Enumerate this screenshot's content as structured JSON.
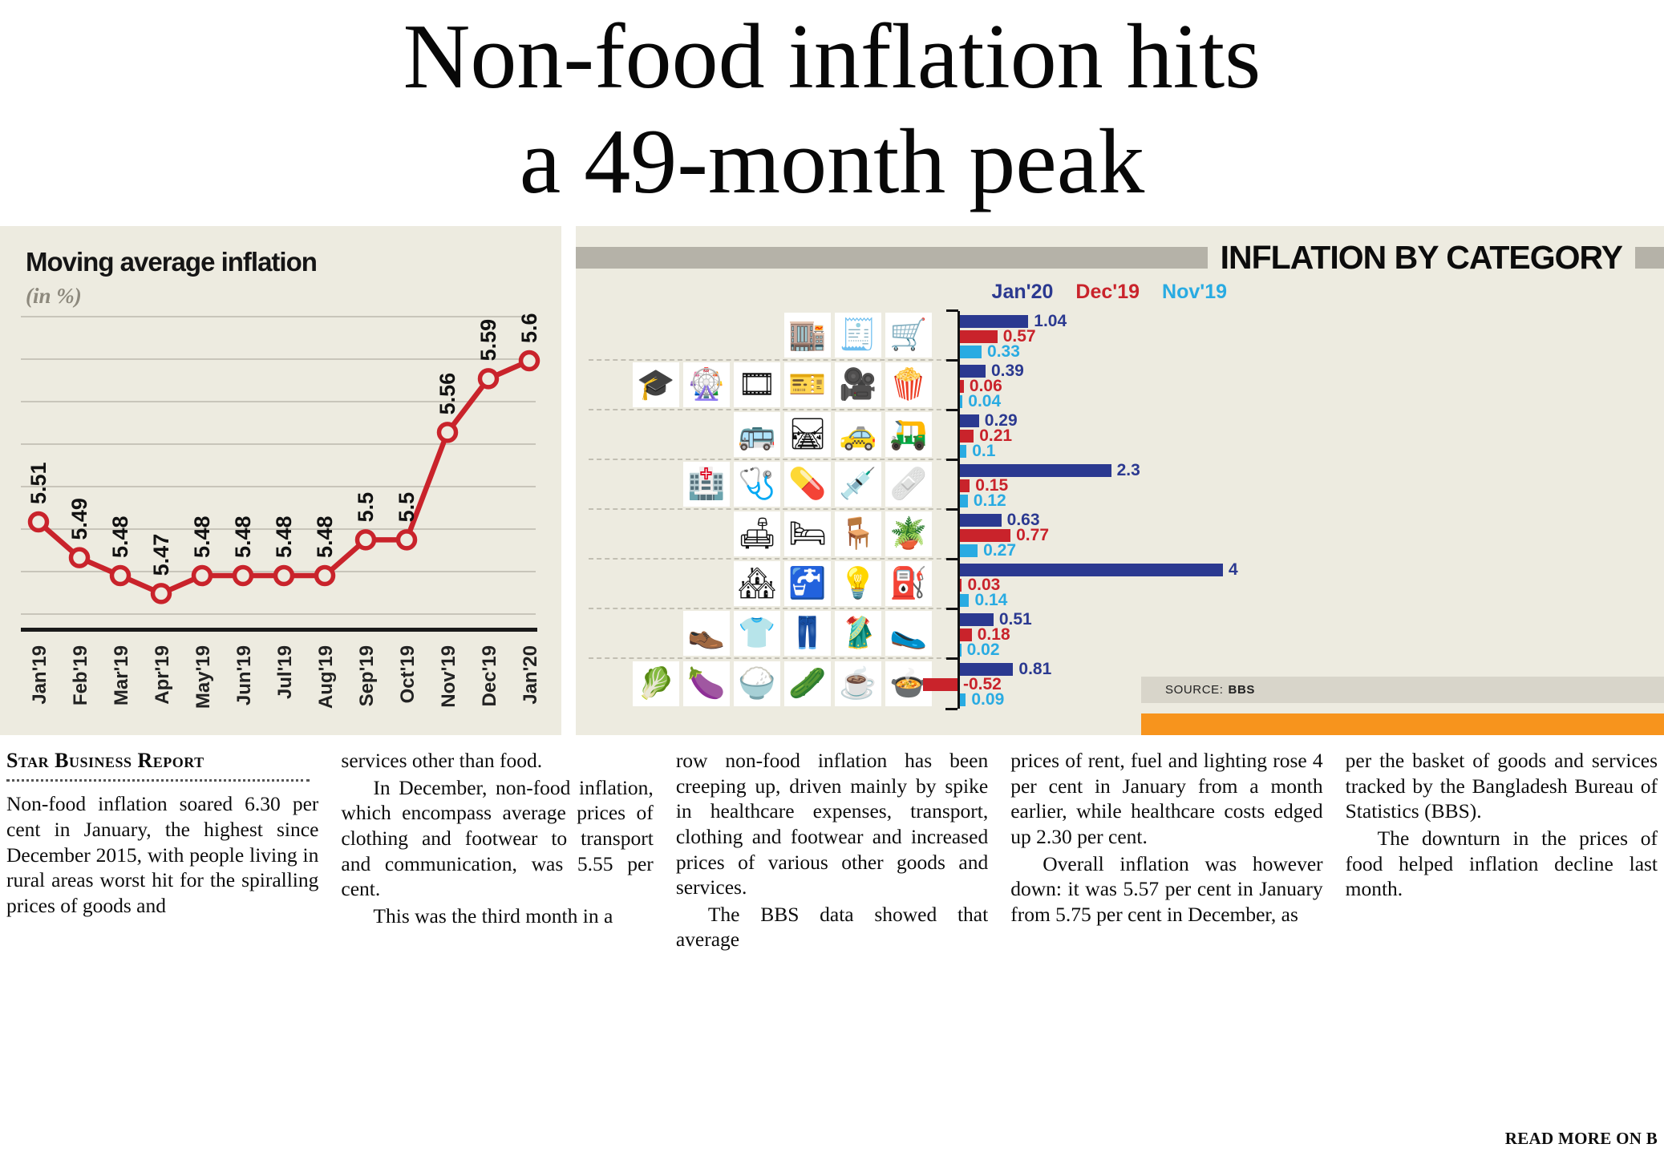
{
  "headline": {
    "line1": "Non-food inflation hits",
    "line2": "a 49-month peak"
  },
  "colors": {
    "navy": "#2b3990",
    "red": "#c9232b",
    "light_blue": "#29abe2",
    "orange": "#f7941d",
    "panel_bg": "#edebe0"
  },
  "chart_data": [
    {
      "type": "line",
      "title": "Moving average inflation",
      "subtitle": "(in %)",
      "x": [
        "Jan'19",
        "Feb'19",
        "Mar'19",
        "Apr'19",
        "May'19",
        "Jun'19",
        "Jul'19",
        "Aug'19",
        "Sep'19",
        "Oct'19",
        "Nov'19",
        "Dec'19",
        "Jan'20"
      ],
      "values": [
        5.51,
        5.49,
        5.48,
        5.47,
        5.48,
        5.48,
        5.48,
        5.48,
        5.5,
        5.5,
        5.56,
        5.59,
        5.6
      ],
      "line_color": "#c9232b",
      "marker": "open-circle",
      "ylim": [
        5.45,
        5.63
      ],
      "grid": true,
      "x_label_rotation": -90,
      "data_label_rotation": -90
    },
    {
      "type": "bar",
      "orientation": "horizontal",
      "title": "INFLATION BY CATEGORY",
      "legend": [
        {
          "label": "Jan'20",
          "color": "#2b3990"
        },
        {
          "label": "Dec'19",
          "color": "#c9232b"
        },
        {
          "label": "Nov'19",
          "color": "#29abe2"
        }
      ],
      "xlim": [
        -0.6,
        4.2
      ],
      "categories": [
        {
          "name": "miscellaneous-goods-and-services",
          "icons": [
            {
              "name": "department-store-icon",
              "glyph": "🏬"
            },
            {
              "name": "receipt-icon",
              "glyph": "🧾"
            },
            {
              "name": "shopping-cart-icon",
              "glyph": "🛒"
            }
          ],
          "values": [
            1.04,
            0.57,
            0.33
          ]
        },
        {
          "name": "education-and-recreation",
          "icons": [
            {
              "name": "graduation-cap-icon",
              "glyph": "🎓"
            },
            {
              "name": "ferris-wheel-icon",
              "glyph": "🎡"
            },
            {
              "name": "film-strip-icon",
              "glyph": "🎞"
            },
            {
              "name": "concert-ticket-icon",
              "glyph": "🎫"
            },
            {
              "name": "movie-camera-icon",
              "glyph": "🎥"
            },
            {
              "name": "popcorn-icon",
              "glyph": "🍿"
            }
          ],
          "values": [
            0.39,
            0.06,
            0.04
          ]
        },
        {
          "name": "transport-and-communication",
          "icons": [
            {
              "name": "bus-icon",
              "glyph": "🚌"
            },
            {
              "name": "railway-track-icon",
              "glyph": "🛤"
            },
            {
              "name": "taxi-icon",
              "glyph": "🚕"
            },
            {
              "name": "auto-rickshaw-icon",
              "glyph": "🛺"
            }
          ],
          "values": [
            0.29,
            0.21,
            0.1
          ]
        },
        {
          "name": "healthcare",
          "icons": [
            {
              "name": "hospital-icon",
              "glyph": "🏥"
            },
            {
              "name": "stethoscope-icon",
              "glyph": "🩺"
            },
            {
              "name": "pill-icon",
              "glyph": "💊"
            },
            {
              "name": "syringe-icon",
              "glyph": "💉"
            },
            {
              "name": "bandage-icon",
              "glyph": "🩹"
            }
          ],
          "values": [
            2.3,
            0.15,
            0.12
          ]
        },
        {
          "name": "furniture-and-household-goods",
          "icons": [
            {
              "name": "couch-icon",
              "glyph": "🛋"
            },
            {
              "name": "bed-icon",
              "glyph": "🛏"
            },
            {
              "name": "chair-icon",
              "glyph": "🪑"
            },
            {
              "name": "houseplant-icon",
              "glyph": "🪴"
            }
          ],
          "values": [
            0.63,
            0.77,
            0.27
          ]
        },
        {
          "name": "rent-fuel-and-lighting",
          "icons": [
            {
              "name": "houses-icon",
              "glyph": "🏘"
            },
            {
              "name": "water-tap-icon",
              "glyph": "🚰"
            },
            {
              "name": "light-bulb-icon",
              "glyph": "💡"
            },
            {
              "name": "kerosene-fuel-icon",
              "glyph": "⛽"
            }
          ],
          "values": [
            4,
            0.03,
            0.14
          ]
        },
        {
          "name": "clothing-and-footwear",
          "icons": [
            {
              "name": "leather-shoe-icon",
              "glyph": "👞"
            },
            {
              "name": "t-shirt-icon",
              "glyph": "👕"
            },
            {
              "name": "jeans-icon",
              "glyph": "👖"
            },
            {
              "name": "sari-icon",
              "glyph": "🥻"
            },
            {
              "name": "flat-shoe-icon",
              "glyph": "🥿"
            }
          ],
          "values": [
            0.51,
            0.18,
            0.02
          ]
        },
        {
          "name": "food",
          "icons": [
            {
              "name": "leafy-greens-icon",
              "glyph": "🥬"
            },
            {
              "name": "eggplant-icon",
              "glyph": "🍆"
            },
            {
              "name": "rice-bowl-icon",
              "glyph": "🍚"
            },
            {
              "name": "cucumber-icon",
              "glyph": "🥒"
            },
            {
              "name": "tea-cup-icon",
              "glyph": "☕"
            },
            {
              "name": "curry-pot-icon",
              "glyph": "🍲"
            }
          ],
          "values": [
            0.81,
            -0.52,
            0.09
          ]
        }
      ],
      "source_prefix": "SOURCE:",
      "source_name": "BBS"
    }
  ],
  "article": {
    "byline": "Star Business Report",
    "read_more": "READ MORE ON B",
    "columns": [
      {
        "paragraphs": [
          {
            "text": "Non-food inflation soared 6.30 per cent in January, the highest since December 2015, with people living in rural areas worst hit for the spiralling prices of goods and",
            "indent": false
          }
        ]
      },
      {
        "paragraphs": [
          {
            "text": "services other than food.",
            "indent": false
          },
          {
            "text": "In December, non-food inflation, which encompass average prices of clothing and footwear to transport and communication, was 5.55 per cent.",
            "indent": true
          },
          {
            "text": "This was the third month in a",
            "indent": true
          }
        ]
      },
      {
        "paragraphs": [
          {
            "text": "row non-food inflation has been creeping up, driven mainly by spike in healthcare expenses, transport, clothing and footwear and increased prices of various other goods and services.",
            "indent": false
          },
          {
            "text": "The BBS data showed that average",
            "indent": true
          }
        ]
      },
      {
        "paragraphs": [
          {
            "text": "prices of rent, fuel and lighting rose 4 per cent in January from a month earlier, while healthcare costs edged up 2.30 per cent.",
            "indent": false
          },
          {
            "text": "Overall inflation was however down: it was 5.57 per cent in January from 5.75 per cent in December, as",
            "indent": true
          }
        ]
      },
      {
        "paragraphs": [
          {
            "text": "per the basket of goods and services tracked by the Bangladesh Bureau of Statistics (BBS).",
            "indent": false
          },
          {
            "text": "The downturn in the prices of food helped inflation decline last month.",
            "indent": true
          }
        ]
      }
    ]
  }
}
